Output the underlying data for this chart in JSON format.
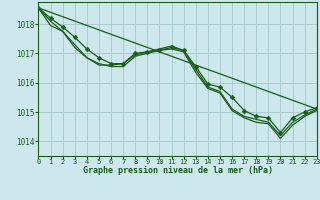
{
  "title": "Graphe pression niveau de la mer (hPa)",
  "bg_color": "#cce8ec",
  "grid_color": "#aacccc",
  "line_color": "#1a5c1a",
  "ylim": [
    1013.5,
    1018.75
  ],
  "xlim": [
    0,
    23
  ],
  "yticks": [
    1014,
    1015,
    1016,
    1017,
    1018
  ],
  "xticks": [
    0,
    1,
    2,
    3,
    4,
    5,
    6,
    7,
    8,
    9,
    10,
    11,
    12,
    13,
    14,
    15,
    16,
    17,
    18,
    19,
    20,
    21,
    22,
    23
  ],
  "series1": [
    1018.55,
    1018.2,
    1017.9,
    1017.55,
    1017.15,
    1016.85,
    1016.65,
    1016.65,
    1017.0,
    1017.05,
    1017.1,
    1017.2,
    1017.1,
    1016.55,
    1015.95,
    1015.85,
    1015.5,
    1015.05,
    1014.85,
    1014.8,
    1014.3,
    1014.8,
    1015.0,
    1015.15
  ],
  "series2": [
    1018.55,
    1018.1,
    1017.75,
    1017.3,
    1016.85,
    1016.6,
    1016.6,
    1016.65,
    1016.95,
    1017.05,
    1017.15,
    1017.25,
    1017.1,
    1016.45,
    1015.85,
    1015.7,
    1015.1,
    1014.85,
    1014.75,
    1014.65,
    1014.2,
    1014.65,
    1014.9,
    1015.1
  ],
  "series3": [
    1018.55,
    1017.95,
    1017.75,
    1017.2,
    1016.85,
    1016.65,
    1016.55,
    1016.55,
    1016.9,
    1017.0,
    1017.1,
    1017.15,
    1017.05,
    1016.35,
    1015.8,
    1015.65,
    1015.05,
    1014.8,
    1014.65,
    1014.6,
    1014.1,
    1014.55,
    1014.85,
    1015.05
  ],
  "straight_line_y": [
    1018.55,
    1015.1
  ],
  "marker": "D",
  "markersize": 2.5,
  "linewidth": 0.9
}
